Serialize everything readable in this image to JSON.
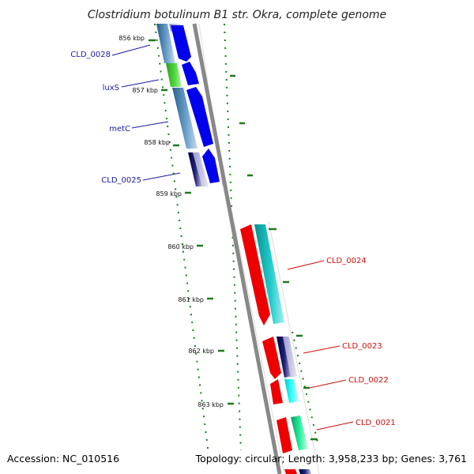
{
  "title": "Clostridium botulinum B1 str. Okra, complete genome",
  "footer": {
    "accession": "Accession: NC_010516",
    "summary": "Topology: circular; Length: 3,958,233 bp; Genes: 3,761"
  },
  "scale_ticks": [
    {
      "label": "856 kbp"
    },
    {
      "label": "857 kbp"
    },
    {
      "label": "858 kbp"
    },
    {
      "label": "859 kbp"
    },
    {
      "label": "860 kbp"
    },
    {
      "label": "861 kbp"
    },
    {
      "label": "862 kbp"
    },
    {
      "label": "863 kbp"
    }
  ],
  "genes_left": [
    {
      "name": "CLD_0028"
    },
    {
      "name": "luxS"
    },
    {
      "name": "metC"
    },
    {
      "name": "CLD_0025"
    }
  ],
  "genes_right": [
    {
      "name": "CLD_0024"
    },
    {
      "name": "CLD_0023"
    },
    {
      "name": "CLD_0022"
    },
    {
      "name": "CLD_0021"
    }
  ],
  "colors": {
    "left_label": "#1a1aa0",
    "right_label": "#cc1111",
    "backbone": "#888888",
    "tick_green": "#1f7a1f",
    "cds_blue": "#0000ee",
    "cds_red": "#ee0000",
    "cog_steel": "#4a86b8",
    "cog_green": "#44cc33",
    "cog_cyan": "#22cccc",
    "cog_navy": "#101060",
    "cog_aqua": "#33ffff",
    "cog_mint": "#22ee99"
  }
}
